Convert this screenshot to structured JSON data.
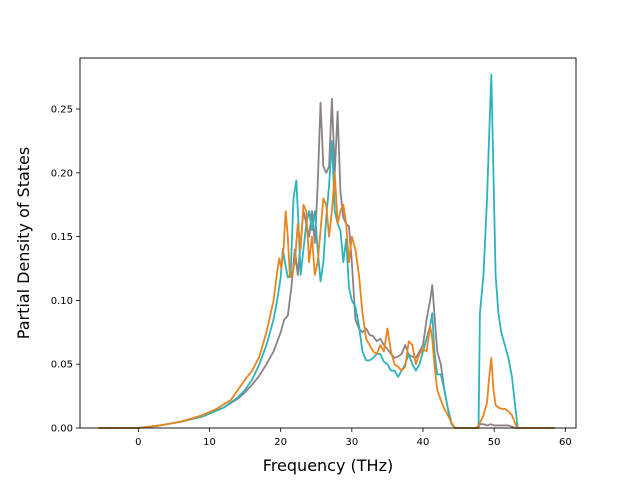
{
  "chart_data": {
    "type": "line",
    "title": "",
    "xlabel": "Frequency (THz)",
    "ylabel": "Partial Density of States",
    "xlim": [
      -8.2,
      61.5
    ],
    "ylim": [
      0,
      0.29
    ],
    "xticks": [
      0,
      10,
      20,
      30,
      40,
      50,
      60
    ],
    "yticks": [
      0.0,
      0.05,
      0.1,
      0.15,
      0.2,
      0.25
    ],
    "ytick_labels": [
      "0.00",
      "0.05",
      "0.10",
      "0.15",
      "0.20",
      "0.25"
    ],
    "grid": false,
    "legend": "none",
    "series": [
      {
        "color": "#8c8188",
        "points": [
          [
            -5.6,
            0
          ],
          [
            0,
            0
          ],
          [
            3,
            0.002
          ],
          [
            6,
            0.005
          ],
          [
            9,
            0.009
          ],
          [
            12,
            0.016
          ],
          [
            14,
            0.023
          ],
          [
            15,
            0.028
          ],
          [
            16,
            0.034
          ],
          [
            17,
            0.041
          ],
          [
            18,
            0.05
          ],
          [
            19,
            0.06
          ],
          [
            20,
            0.075
          ],
          [
            20.5,
            0.085
          ],
          [
            21,
            0.088
          ],
          [
            21.5,
            0.11
          ],
          [
            22,
            0.14
          ],
          [
            22.4,
            0.12
          ],
          [
            22.8,
            0.145
          ],
          [
            23.2,
            0.17
          ],
          [
            23.6,
            0.16
          ],
          [
            24,
            0.15
          ],
          [
            24.4,
            0.17
          ],
          [
            24.8,
            0.145
          ],
          [
            25.2,
            0.19
          ],
          [
            25.6,
            0.255
          ],
          [
            26,
            0.205
          ],
          [
            26.4,
            0.2
          ],
          [
            26.8,
            0.205
          ],
          [
            27.2,
            0.258
          ],
          [
            27.6,
            0.2
          ],
          [
            28,
            0.248
          ],
          [
            28.4,
            0.185
          ],
          [
            28.8,
            0.165
          ],
          [
            29.2,
            0.16
          ],
          [
            29.6,
            0.158
          ],
          [
            30,
            0.13
          ],
          [
            30.5,
            0.085
          ],
          [
            31,
            0.078
          ],
          [
            31.5,
            0.075
          ],
          [
            32,
            0.078
          ],
          [
            32.5,
            0.073
          ],
          [
            33,
            0.072
          ],
          [
            33.5,
            0.068
          ],
          [
            34,
            0.07
          ],
          [
            34.5,
            0.065
          ],
          [
            35,
            0.062
          ],
          [
            35.5,
            0.058
          ],
          [
            36,
            0.055
          ],
          [
            36.5,
            0.056
          ],
          [
            37,
            0.058
          ],
          [
            37.5,
            0.065
          ],
          [
            38,
            0.057
          ],
          [
            38.5,
            0.056
          ],
          [
            39,
            0.055
          ],
          [
            39.5,
            0.06
          ],
          [
            40,
            0.065
          ],
          [
            40.5,
            0.085
          ],
          [
            41,
            0.1
          ],
          [
            41.3,
            0.112
          ],
          [
            41.6,
            0.09
          ],
          [
            42,
            0.06
          ],
          [
            42.5,
            0.05
          ],
          [
            43,
            0.03
          ],
          [
            43.5,
            0.015
          ],
          [
            44,
            0.004
          ],
          [
            44.5,
            0
          ],
          [
            47.5,
            0
          ],
          [
            48,
            0.003
          ],
          [
            48.5,
            0.003
          ],
          [
            49,
            0.002
          ],
          [
            49.5,
            0.003
          ],
          [
            50,
            0.002
          ],
          [
            51,
            0.002
          ],
          [
            52,
            0.002
          ],
          [
            52.5,
            0.001
          ],
          [
            53,
            0
          ],
          [
            58.5,
            0
          ]
        ]
      },
      {
        "color": "#2bb3be",
        "points": [
          [
            -5.6,
            0
          ],
          [
            0,
            0
          ],
          [
            3,
            0.002
          ],
          [
            6,
            0.005
          ],
          [
            9,
            0.009
          ],
          [
            12,
            0.016
          ],
          [
            14,
            0.024
          ],
          [
            15,
            0.03
          ],
          [
            16,
            0.038
          ],
          [
            17,
            0.05
          ],
          [
            18,
            0.065
          ],
          [
            19,
            0.085
          ],
          [
            19.5,
            0.1
          ],
          [
            20,
            0.118
          ],
          [
            20.3,
            0.14
          ],
          [
            20.6,
            0.13
          ],
          [
            21,
            0.118
          ],
          [
            21.4,
            0.12
          ],
          [
            21.8,
            0.18
          ],
          [
            22.2,
            0.194
          ],
          [
            22.5,
            0.16
          ],
          [
            22.8,
            0.12
          ],
          [
            23.2,
            0.14
          ],
          [
            23.6,
            0.16
          ],
          [
            24,
            0.17
          ],
          [
            24.4,
            0.155
          ],
          [
            24.8,
            0.17
          ],
          [
            25.2,
            0.14
          ],
          [
            25.6,
            0.115
          ],
          [
            26,
            0.13
          ],
          [
            26.4,
            0.165
          ],
          [
            26.8,
            0.19
          ],
          [
            27.2,
            0.225
          ],
          [
            27.6,
            0.17
          ],
          [
            28,
            0.16
          ],
          [
            28.4,
            0.155
          ],
          [
            28.8,
            0.13
          ],
          [
            29.2,
            0.148
          ],
          [
            29.6,
            0.11
          ],
          [
            30,
            0.1
          ],
          [
            30.5,
            0.095
          ],
          [
            31,
            0.08
          ],
          [
            31.5,
            0.06
          ],
          [
            32,
            0.053
          ],
          [
            32.5,
            0.053
          ],
          [
            33,
            0.055
          ],
          [
            33.5,
            0.058
          ],
          [
            34,
            0.058
          ],
          [
            34.5,
            0.052
          ],
          [
            35,
            0.05
          ],
          [
            35.5,
            0.045
          ],
          [
            36,
            0.045
          ],
          [
            36.5,
            0.04
          ],
          [
            37,
            0.045
          ],
          [
            37.5,
            0.05
          ],
          [
            38,
            0.058
          ],
          [
            38.5,
            0.05
          ],
          [
            39,
            0.045
          ],
          [
            39.5,
            0.05
          ],
          [
            40,
            0.06
          ],
          [
            40.5,
            0.07
          ],
          [
            41,
            0.08
          ],
          [
            41.3,
            0.09
          ],
          [
            41.6,
            0.06
          ],
          [
            42,
            0.042
          ],
          [
            42.5,
            0.042
          ],
          [
            43,
            0.03
          ],
          [
            43.5,
            0.015
          ],
          [
            44,
            0.003
          ],
          [
            44.5,
            0
          ],
          [
            47.8,
            0
          ],
          [
            48,
            0.09
          ],
          [
            48.5,
            0.12
          ],
          [
            49,
            0.18
          ],
          [
            49.3,
            0.23
          ],
          [
            49.6,
            0.277
          ],
          [
            49.9,
            0.2
          ],
          [
            50.2,
            0.12
          ],
          [
            50.6,
            0.09
          ],
          [
            51,
            0.075
          ],
          [
            51.5,
            0.065
          ],
          [
            52,
            0.055
          ],
          [
            52.5,
            0.04
          ],
          [
            53,
            0.015
          ],
          [
            53.3,
            0
          ],
          [
            58.5,
            0
          ]
        ]
      },
      {
        "color": "#e8851f",
        "points": [
          [
            -5.6,
            0
          ],
          [
            0,
            0
          ],
          [
            3,
            0.002
          ],
          [
            6,
            0.005
          ],
          [
            9,
            0.01
          ],
          [
            11,
            0.015
          ],
          [
            13,
            0.022
          ],
          [
            14,
            0.03
          ],
          [
            15,
            0.038
          ],
          [
            16,
            0.045
          ],
          [
            17,
            0.056
          ],
          [
            18,
            0.075
          ],
          [
            19,
            0.1
          ],
          [
            19.5,
            0.122
          ],
          [
            19.8,
            0.133
          ],
          [
            20.1,
            0.125
          ],
          [
            20.4,
            0.14
          ],
          [
            20.7,
            0.17
          ],
          [
            21,
            0.15
          ],
          [
            21.3,
            0.118
          ],
          [
            21.6,
            0.12
          ],
          [
            22,
            0.13
          ],
          [
            22.4,
            0.16
          ],
          [
            22.8,
            0.14
          ],
          [
            23.2,
            0.175
          ],
          [
            23.6,
            0.17
          ],
          [
            24,
            0.13
          ],
          [
            24.4,
            0.15
          ],
          [
            24.8,
            0.12
          ],
          [
            25.2,
            0.13
          ],
          [
            25.6,
            0.155
          ],
          [
            26,
            0.18
          ],
          [
            26.4,
            0.175
          ],
          [
            26.8,
            0.15
          ],
          [
            27.2,
            0.17
          ],
          [
            27.6,
            0.2
          ],
          [
            28,
            0.16
          ],
          [
            28.4,
            0.17
          ],
          [
            28.8,
            0.175
          ],
          [
            29.2,
            0.16
          ],
          [
            29.6,
            0.13
          ],
          [
            30,
            0.15
          ],
          [
            30.5,
            0.14
          ],
          [
            31,
            0.12
          ],
          [
            31.5,
            0.09
          ],
          [
            32,
            0.07
          ],
          [
            32.5,
            0.065
          ],
          [
            33,
            0.06
          ],
          [
            33.5,
            0.058
          ],
          [
            34,
            0.065
          ],
          [
            34.5,
            0.06
          ],
          [
            35,
            0.078
          ],
          [
            35.5,
            0.06
          ],
          [
            36,
            0.05
          ],
          [
            36.5,
            0.048
          ],
          [
            37,
            0.045
          ],
          [
            37.5,
            0.048
          ],
          [
            38,
            0.068
          ],
          [
            38.5,
            0.065
          ],
          [
            39,
            0.05
          ],
          [
            39.5,
            0.058
          ],
          [
            40,
            0.062
          ],
          [
            40.5,
            0.06
          ],
          [
            41,
            0.08
          ],
          [
            41.3,
            0.07
          ],
          [
            41.6,
            0.05
          ],
          [
            42,
            0.03
          ],
          [
            42.5,
            0.022
          ],
          [
            43,
            0.015
          ],
          [
            43.5,
            0.01
          ],
          [
            44,
            0.004
          ],
          [
            44.5,
            0
          ],
          [
            47.8,
            0
          ],
          [
            48,
            0.004
          ],
          [
            48.5,
            0.01
          ],
          [
            49,
            0.02
          ],
          [
            49.3,
            0.04
          ],
          [
            49.6,
            0.055
          ],
          [
            49.9,
            0.03
          ],
          [
            50.2,
            0.018
          ],
          [
            50.6,
            0.016
          ],
          [
            51,
            0.015
          ],
          [
            51.5,
            0.015
          ],
          [
            52,
            0.013
          ],
          [
            52.5,
            0.01
          ],
          [
            53,
            0.003
          ],
          [
            53.3,
            0
          ],
          [
            58.5,
            0
          ]
        ]
      }
    ]
  }
}
